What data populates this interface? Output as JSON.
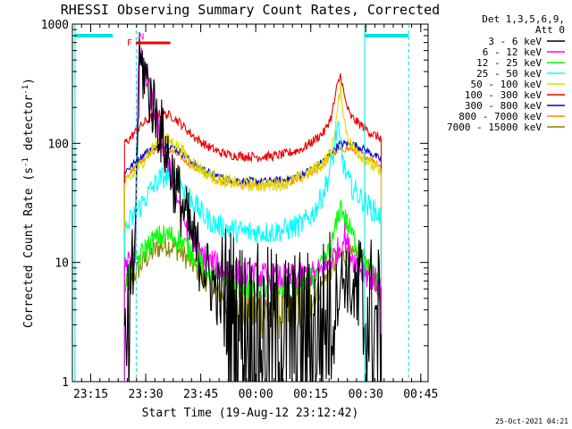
{
  "chart_data": {
    "type": "line",
    "title": "RHESSI Observing Summary Count Rates, Corrected",
    "xlabel": "Start Time (19-Aug-12 23:12:42)",
    "ylabel_main": "Corrected Count Rate (s",
    "ylabel_sup1": "-1",
    "ylabel_mid": " detector",
    "ylabel_sup2": "-1",
    "ylabel_end": ")",
    "y_scale": "log",
    "ylim": [
      1,
      1000
    ],
    "xlim_minutes": [
      -2.7,
      94.3
    ],
    "x_ticks": [
      "23:15",
      "23:30",
      "23:45",
      "00:00",
      "00:15",
      "00:30",
      "00:45"
    ],
    "y_ticks": [
      "1",
      "10",
      "100",
      "1000"
    ],
    "legend_header": [
      "Det 1,3,5,6,9,",
      "Att 0"
    ],
    "timestamp": "25-Oct-2021 04:21",
    "flags": {
      "f_label": "F",
      "n_label": "N",
      "f_color": "#ee0000",
      "n_color": "#ff00ff"
    },
    "markers": {
      "cyan_color": "#00e0e0",
      "night_bars": [
        [
          -2,
          8.3
        ],
        [
          77,
          89
        ]
      ],
      "solid_lines": [
        -2,
        77
      ],
      "dashed_lines": [
        14.7,
        89
      ]
    },
    "series": [
      {
        "name": "3 - 6 keV",
        "color": "#000000",
        "x": [
          11.5,
          12.5,
          13.3,
          14.3,
          15.6,
          17,
          18.5,
          20,
          22,
          24,
          26,
          28,
          30,
          32,
          35,
          38,
          42,
          46,
          50,
          55,
          60,
          64,
          67,
          69,
          70.5,
          72,
          73,
          74.5,
          76,
          77.5,
          79,
          80.3,
          81.5
        ],
        "y": [
          1,
          1.8,
          2.5,
          15,
          450,
          400,
          250,
          180,
          110,
          65,
          38,
          25,
          16,
          11,
          7,
          5,
          3.3,
          2.7,
          2.5,
          2.5,
          2.4,
          2.6,
          3.5,
          5,
          7,
          8,
          6,
          5,
          4,
          3.5,
          3.3,
          3,
          2.5
        ]
      },
      {
        "name": "6 - 12 keV",
        "color": "#ff00ff",
        "x": [
          11.5,
          12.5,
          13.5,
          14.5,
          15.3,
          16.5,
          18,
          20,
          22,
          24,
          26,
          28,
          30,
          32,
          35,
          38,
          41,
          44,
          47,
          50,
          55,
          60,
          64,
          66,
          68,
          70,
          71.5,
          73,
          74.5,
          76,
          78,
          80,
          81.5
        ],
        "y": [
          9,
          10,
          10.5,
          11,
          600,
          450,
          300,
          170,
          95,
          55,
          35,
          22,
          16,
          12,
          10,
          9,
          8.5,
          8,
          7.8,
          7.6,
          7.5,
          7.6,
          8,
          9,
          10.5,
          13,
          17,
          12,
          10,
          9,
          8,
          7,
          6
        ]
      },
      {
        "name": "12 - 25 keV",
        "color": "#00ff00",
        "x": [
          11.5,
          12.5,
          14,
          15.5,
          17,
          19,
          21,
          23,
          25,
          27,
          29,
          31,
          33,
          36,
          39,
          42,
          45,
          48,
          52,
          56,
          60,
          63,
          66,
          68,
          69.5,
          70.5,
          72,
          74,
          76,
          78,
          80,
          81.5
        ],
        "y": [
          7,
          8,
          9.5,
          11,
          13,
          15,
          16.5,
          17,
          16.5,
          15,
          13,
          11,
          9.5,
          8,
          7,
          6.5,
          6.3,
          6.2,
          6.2,
          6.3,
          6.6,
          7.5,
          10,
          14,
          22,
          30,
          22,
          16,
          12,
          9,
          7,
          6
        ]
      },
      {
        "name": "25 - 50 keV",
        "color": "#00ffff",
        "x": [
          11.5,
          13,
          15,
          17,
          19,
          21,
          23,
          25,
          27,
          29,
          31,
          33,
          36,
          39,
          42,
          45,
          48,
          52,
          56,
          60,
          63,
          65,
          67,
          68.5,
          69.5,
          70.5,
          71.5,
          73,
          75,
          77,
          79,
          81.5
        ],
        "y": [
          18,
          22,
          27,
          34,
          42,
          50,
          54,
          52,
          45,
          37,
          30,
          25,
          21,
          19.5,
          18.5,
          18,
          18,
          18,
          19,
          21,
          26,
          34,
          50,
          80,
          140,
          90,
          60,
          45,
          38,
          32,
          28,
          24
        ]
      },
      {
        "name": "50 - 100 keV",
        "color": "#dddd00",
        "x": [
          11.5,
          13,
          15,
          17,
          19,
          21,
          23,
          25,
          27,
          29,
          31,
          34,
          37,
          40,
          44,
          48,
          52,
          56,
          60,
          63,
          66,
          68,
          69.5,
          70.5,
          71.5,
          73,
          75,
          77,
          79,
          81.5
        ],
        "y": [
          45,
          50,
          60,
          75,
          90,
          102,
          108,
          100,
          88,
          75,
          65,
          56,
          50,
          47,
          45,
          44.5,
          45,
          47,
          52,
          60,
          70,
          85,
          180,
          300,
          150,
          100,
          85,
          75,
          65,
          55
        ]
      },
      {
        "name": "100 - 300 keV",
        "color": "#ee0000",
        "x": [
          11.5,
          13,
          15,
          17,
          19,
          21,
          23,
          25,
          27,
          29,
          31,
          34,
          37,
          40,
          44,
          48,
          52,
          56,
          60,
          63,
          66,
          68,
          69.5,
          70.5,
          71.5,
          73,
          75,
          77,
          79,
          81.5
        ],
        "y": [
          100,
          110,
          130,
          150,
          165,
          175,
          175,
          165,
          145,
          125,
          110,
          95,
          85,
          80,
          78,
          77,
          78,
          82,
          90,
          105,
          125,
          170,
          300,
          380,
          240,
          170,
          150,
          135,
          120,
          110
        ]
      },
      {
        "name": "300 - 800 keV",
        "color": "#0000dd",
        "x": [
          11.5,
          13,
          15,
          17,
          19,
          21,
          23,
          25,
          27,
          29,
          31,
          34,
          37,
          40,
          44,
          48,
          52,
          56,
          60,
          63,
          66,
          68,
          70,
          72,
          74,
          76,
          78,
          80,
          81.5
        ],
        "y": [
          58,
          63,
          72,
          82,
          92,
          98,
          97,
          92,
          83,
          74,
          66,
          58,
          53,
          50,
          48.5,
          48,
          48.5,
          50,
          55,
          62,
          72,
          85,
          98,
          100,
          98,
          92,
          85,
          78,
          72
        ]
      },
      {
        "name": "800 - 7000 keV",
        "color": "#ff8800",
        "x": [
          11.5,
          13,
          15,
          17,
          19,
          21,
          23,
          25,
          27,
          29,
          31,
          34,
          37,
          40,
          44,
          48,
          52,
          56,
          60,
          63,
          66,
          68,
          70,
          72,
          74,
          76,
          78,
          80,
          81.5
        ],
        "y": [
          52,
          57,
          66,
          76,
          85,
          90,
          89,
          84,
          76,
          68,
          61,
          54,
          49,
          46.5,
          45,
          44.5,
          45,
          46.5,
          51,
          57,
          66,
          78,
          88,
          90,
          88,
          82,
          76,
          70,
          64
        ]
      },
      {
        "name": "7000 - 15000 keV",
        "color": "#888800",
        "x": [
          11.5,
          13,
          15,
          17,
          19,
          21,
          23,
          25,
          27,
          29,
          31,
          33,
          36,
          39,
          42,
          46,
          50,
          54,
          58,
          61,
          64,
          66,
          68,
          70,
          72,
          74,
          76,
          78,
          80,
          81.5
        ],
        "y": [
          6,
          7,
          8.5,
          10.5,
          12,
          13.5,
          14,
          13.5,
          12,
          10.5,
          9,
          7.5,
          6,
          5,
          4.3,
          4,
          3.9,
          3.9,
          4,
          4.5,
          5.5,
          7,
          9,
          11,
          11.5,
          11,
          10,
          8.5,
          7,
          5
        ]
      }
    ]
  }
}
